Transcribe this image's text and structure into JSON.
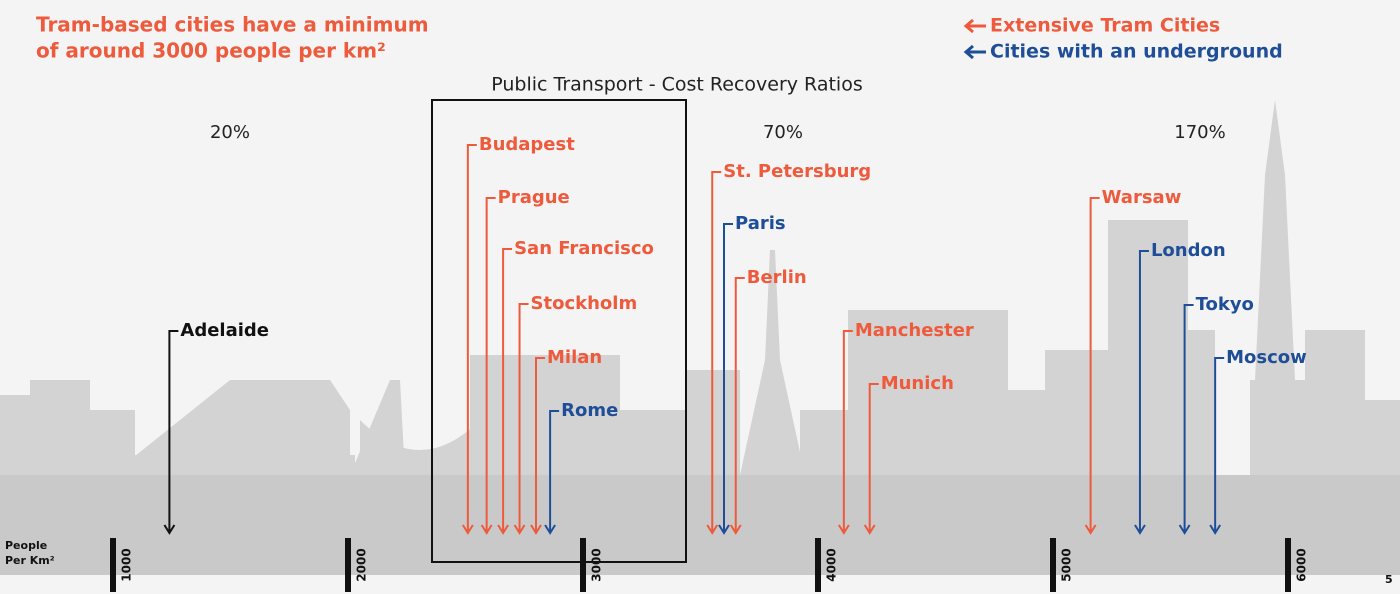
{
  "chart_data": {
    "type": "arrow-axis",
    "title": "Public Transport - Cost Recovery Ratios",
    "note_lines": [
      "Tram-based cities have a minimum",
      "of around 3000 people per km²"
    ],
    "xlabel_lines": [
      "People",
      "Per Km²"
    ],
    "annotations": [
      "20%",
      "70%",
      "170%"
    ],
    "xlim": [
      1000,
      6000
    ],
    "xticks": [
      1000,
      2000,
      3000,
      4000,
      5000,
      6000
    ],
    "series": [
      {
        "name": "Extensive Tram Cities",
        "color": "#ee5a3c",
        "labels": [
          "Budapest",
          "Prague",
          "San Francisco",
          "Stockholm",
          "Milan",
          "St. Petersburg",
          "Berlin",
          "Manchester",
          "Munich",
          "Warsaw"
        ],
        "values": [
          2510,
          2590,
          2660,
          2730,
          2800,
          3550,
          3650,
          4110,
          4220,
          5160
        ]
      },
      {
        "name": "Cities with an underground",
        "color": "#1f4e99",
        "labels": [
          "Rome",
          "Paris",
          "London",
          "Tokyo",
          "Moscow"
        ],
        "values": [
          2860,
          3600,
          5370,
          5560,
          5690
        ]
      }
    ],
    "other": {
      "color": "#111111",
      "labels": [
        "Adelaide"
      ],
      "values": [
        1240
      ]
    }
  },
  "page_number": "5"
}
